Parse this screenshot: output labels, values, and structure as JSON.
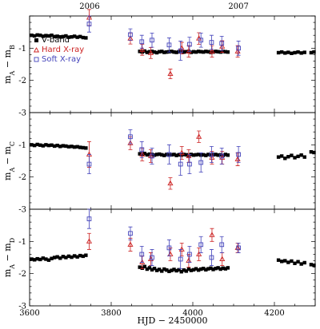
{
  "colors": {
    "vband": "#000000",
    "hard": "#cc2222",
    "soft": "#4444bb"
  },
  "year_labels": [
    {
      "text": "2006",
      "x": 3747
    },
    {
      "text": "2007",
      "x": 4112
    }
  ],
  "legend": {
    "vband": "V-band",
    "hard": "Hard X-ray",
    "soft": "Soft X-ray"
  },
  "chart_data": {
    "type": "scatter",
    "xlabel": "HJD − 2450000",
    "xlim": [
      3600,
      4300
    ],
    "xticks": [
      3600,
      3800,
      4000,
      4200
    ],
    "grid": false,
    "legend_placement": "top-left of first panel",
    "panels": [
      {
        "ylabel_main": "m",
        "ylabel_s1": "A",
        "ylabel_mid": " − m",
        "ylabel_s2": "B",
        "ylim": [
          -3,
          0
        ],
        "yticks": [
          -1,
          -2,
          -3
        ],
        "ytick_labels": [
          "-1",
          "-2",
          "-3"
        ],
        "vband_x": [
          3605,
          3612,
          3619,
          3626,
          3633,
          3640,
          3647,
          3654,
          3661,
          3668,
          3675,
          3682,
          3689,
          3696,
          3703,
          3710,
          3717,
          3724,
          3731,
          3738,
          3870,
          3876,
          3882,
          3888,
          3894,
          3900,
          3906,
          3912,
          3918,
          3924,
          3930,
          3936,
          3942,
          3948,
          3954,
          3960,
          3966,
          3972,
          3978,
          3984,
          3990,
          3996,
          4002,
          4008,
          4014,
          4020,
          4026,
          4032,
          4038,
          4044,
          4050,
          4056,
          4062,
          4068,
          4074,
          4080,
          4086,
          4210,
          4218,
          4226,
          4234,
          4242,
          4250,
          4258,
          4266,
          4274,
          4290,
          4297
        ],
        "vband_y": [
          -0.6,
          -0.62,
          -0.59,
          -0.6,
          -0.63,
          -0.61,
          -0.62,
          -0.6,
          -0.64,
          -0.63,
          -0.65,
          -0.64,
          -0.62,
          -0.66,
          -0.65,
          -0.63,
          -0.66,
          -0.64,
          -0.67,
          -0.68,
          -1.1,
          -1.12,
          -1.09,
          -1.13,
          -1.11,
          -1.1,
          -1.12,
          -1.14,
          -1.11,
          -1.1,
          -1.13,
          -1.12,
          -1.11,
          -1.1,
          -1.12,
          -1.13,
          -1.11,
          -1.1,
          -1.12,
          -1.11,
          -1.1,
          -1.13,
          -1.11,
          -1.12,
          -1.1,
          -1.11,
          -1.12,
          -1.1,
          -1.11,
          -1.13,
          -1.12,
          -1.1,
          -1.11,
          -1.12,
          -1.1,
          -1.11,
          -1.12,
          -1.14,
          -1.12,
          -1.15,
          -1.13,
          -1.16,
          -1.14,
          -1.12,
          -1.15,
          -1.13,
          -1.14,
          -1.12
        ],
        "hard_x": [
          3746,
          3847,
          3876,
          3897,
          3945,
          3973,
          3990,
          4015,
          4047,
          4072,
          4110
        ],
        "hard_y": [
          -0.05,
          -0.7,
          -1.05,
          -1.15,
          -1.8,
          -1.0,
          -1.1,
          -0.7,
          -1.1,
          -0.95,
          -1.1
        ],
        "hard_err": [
          0.25,
          0.17,
          0.17,
          0.17,
          0.15,
          0.18,
          0.18,
          0.18,
          0.18,
          0.18,
          0.18
        ],
        "soft_x": [
          3746,
          3847,
          3875,
          3900,
          3942,
          3970,
          3992,
          4020,
          4046,
          4071,
          4112
        ],
        "soft_y": [
          -0.25,
          -0.58,
          -0.8,
          -0.75,
          -0.9,
          -1.08,
          -0.88,
          -0.75,
          -0.82,
          -0.85,
          -1.0
        ],
        "soft_err": [
          0.25,
          0.18,
          0.2,
          0.22,
          0.22,
          0.3,
          0.22,
          0.22,
          0.22,
          0.22,
          0.22
        ]
      },
      {
        "ylabel_main": "m",
        "ylabel_s1": "A",
        "ylabel_mid": " − m",
        "ylabel_s2": "C",
        "ylim": [
          -3,
          0
        ],
        "yticks": [
          -1,
          -2,
          -3
        ],
        "ytick_labels": [
          "-1",
          "-2",
          "-3"
        ],
        "vband_x": [
          3605,
          3612,
          3619,
          3626,
          3633,
          3640,
          3647,
          3654,
          3661,
          3668,
          3675,
          3682,
          3689,
          3696,
          3703,
          3710,
          3717,
          3724,
          3731,
          3738,
          3870,
          3876,
          3882,
          3888,
          3894,
          3900,
          3906,
          3912,
          3918,
          3924,
          3930,
          3936,
          3942,
          3948,
          3954,
          3960,
          3966,
          3972,
          3978,
          3984,
          3990,
          3996,
          4002,
          4008,
          4014,
          4020,
          4026,
          4032,
          4038,
          4044,
          4050,
          4056,
          4062,
          4068,
          4074,
          4080,
          4086,
          4210,
          4218,
          4226,
          4234,
          4242,
          4250,
          4258,
          4266,
          4274,
          4290,
          4297
        ],
        "vband_y": [
          -1.0,
          -1.02,
          -0.99,
          -1.01,
          -1.03,
          -1.0,
          -1.02,
          -1.01,
          -1.04,
          -1.02,
          -1.05,
          -1.03,
          -1.04,
          -1.06,
          -1.05,
          -1.07,
          -1.06,
          -1.08,
          -1.09,
          -1.1,
          -1.28,
          -1.3,
          -1.27,
          -1.31,
          -1.29,
          -1.3,
          -1.32,
          -1.3,
          -1.29,
          -1.31,
          -1.33,
          -1.3,
          -1.32,
          -1.31,
          -1.3,
          -1.33,
          -1.31,
          -1.32,
          -1.3,
          -1.31,
          -1.33,
          -1.3,
          -1.32,
          -1.31,
          -1.3,
          -1.32,
          -1.31,
          -1.33,
          -1.3,
          -1.32,
          -1.31,
          -1.3,
          -1.32,
          -1.31,
          -1.33,
          -1.3,
          -1.32,
          -1.38,
          -1.35,
          -1.42,
          -1.37,
          -1.33,
          -1.4,
          -1.36,
          -1.32,
          -1.38,
          -1.22,
          -1.24
        ],
        "hard_x": [
          3746,
          3847,
          3876,
          3897,
          3945,
          3973,
          3990,
          4015,
          4047,
          4072,
          4110
        ],
        "hard_y": [
          -1.3,
          -0.95,
          -1.3,
          -1.35,
          -2.2,
          -1.25,
          -1.35,
          -0.75,
          -1.4,
          -1.4,
          -1.45
        ],
        "hard_err": [
          0.4,
          0.2,
          0.2,
          0.2,
          0.18,
          0.2,
          0.2,
          0.18,
          0.2,
          0.2,
          0.2
        ],
        "soft_x": [
          3746,
          3847,
          3875,
          3900,
          3942,
          3970,
          3992,
          4020,
          4046,
          4071,
          4112
        ],
        "soft_y": [
          -1.6,
          -0.75,
          -1.15,
          -1.35,
          -1.3,
          -1.6,
          -1.6,
          -1.55,
          -1.3,
          -1.35,
          -1.3
        ],
        "soft_err": [
          0.3,
          0.22,
          0.25,
          0.25,
          0.3,
          0.35,
          0.3,
          0.3,
          0.25,
          0.25,
          0.25
        ]
      },
      {
        "ylabel_main": "m",
        "ylabel_s1": "A",
        "ylabel_mid": " − m",
        "ylabel_s2": "D",
        "ylim": [
          -3,
          0
        ],
        "yticks": [
          -1,
          -2,
          -3
        ],
        "ytick_labels": [
          "-1",
          "-2",
          "-3"
        ],
        "vband_x": [
          3605,
          3612,
          3619,
          3626,
          3633,
          3640,
          3647,
          3654,
          3661,
          3668,
          3675,
          3682,
          3689,
          3696,
          3703,
          3710,
          3717,
          3724,
          3731,
          3738,
          3870,
          3876,
          3882,
          3888,
          3894,
          3900,
          3906,
          3912,
          3918,
          3924,
          3930,
          3936,
          3942,
          3948,
          3954,
          3960,
          3966,
          3972,
          3978,
          3984,
          3990,
          3996,
          4002,
          4008,
          4014,
          4020,
          4026,
          4032,
          4038,
          4044,
          4050,
          4056,
          4062,
          4068,
          4074,
          4080,
          4086,
          4210,
          4218,
          4226,
          4234,
          4242,
          4250,
          4258,
          4266,
          4274,
          4290,
          4297
        ],
        "vband_y": [
          -1.55,
          -1.57,
          -1.54,
          -1.56,
          -1.52,
          -1.55,
          -1.58,
          -1.53,
          -1.5,
          -1.48,
          -1.52,
          -1.47,
          -1.5,
          -1.46,
          -1.49,
          -1.45,
          -1.48,
          -1.44,
          -1.46,
          -1.43,
          -1.8,
          -1.83,
          -1.78,
          -1.86,
          -1.82,
          -1.88,
          -1.84,
          -1.9,
          -1.87,
          -1.92,
          -1.86,
          -1.89,
          -1.93,
          -1.9,
          -1.87,
          -1.91,
          -1.88,
          -1.94,
          -1.89,
          -1.92,
          -1.86,
          -1.9,
          -1.88,
          -1.85,
          -1.89,
          -1.86,
          -1.84,
          -1.88,
          -1.85,
          -1.83,
          -1.87,
          -1.84,
          -1.82,
          -1.86,
          -1.83,
          -1.85,
          -1.82,
          -1.58,
          -1.62,
          -1.6,
          -1.65,
          -1.61,
          -1.68,
          -1.63,
          -1.7,
          -1.66,
          -1.72,
          -1.74
        ],
        "hard_x": [
          3746,
          3847,
          3876,
          3897,
          3945,
          3973,
          3990,
          4015,
          4047,
          4072,
          4110
        ],
        "hard_y": [
          -1.0,
          -1.1,
          -1.65,
          -1.55,
          -1.4,
          -1.25,
          -1.6,
          -1.4,
          -0.8,
          -1.55,
          -1.2
        ],
        "hard_err": [
          0.25,
          0.2,
          0.2,
          0.2,
          0.2,
          0.2,
          0.2,
          0.2,
          0.2,
          0.2,
          0.15
        ],
        "soft_x": [
          3746,
          3847,
          3875,
          3900,
          3942,
          3970,
          3992,
          4020,
          4046,
          4071,
          4112
        ],
        "soft_y": [
          -0.3,
          -0.75,
          -1.4,
          -1.5,
          -1.2,
          -1.55,
          -1.4,
          -1.1,
          -1.5,
          -1.1,
          -1.2
        ],
        "soft_err": [
          0.3,
          0.2,
          0.25,
          0.25,
          0.25,
          0.3,
          0.25,
          0.25,
          0.25,
          0.25,
          0.15
        ]
      }
    ]
  }
}
